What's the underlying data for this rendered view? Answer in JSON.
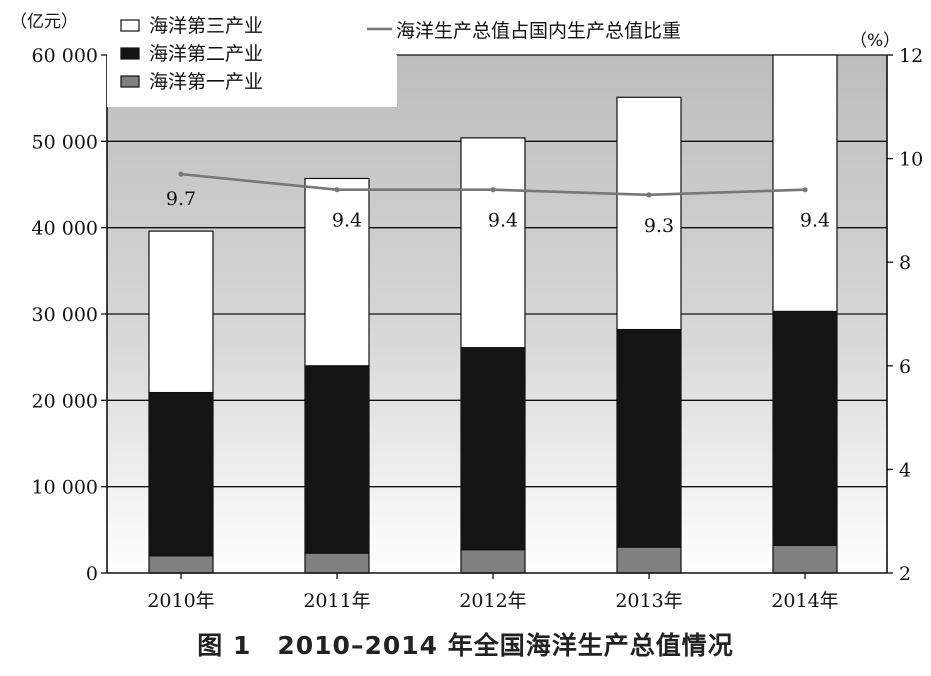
{
  "chart_data": {
    "type": "bar",
    "stacked": true,
    "caption": "图 1　2010–2014 年全国海洋生产总值情况",
    "left_unit": "（亿元）",
    "right_unit": "（%）",
    "categories": [
      "2010年",
      "2011年",
      "2012年",
      "2013年",
      "2014年"
    ],
    "series": [
      {
        "name": "海洋第一产业",
        "color": "#808080",
        "values": [
          2000,
          2300,
          2700,
          3000,
          3200
        ]
      },
      {
        "name": "海洋第二产业",
        "color": "#141414",
        "values": [
          18900,
          21700,
          23400,
          25200,
          27100
        ]
      },
      {
        "name": "海洋第三产业",
        "color": "#ffffff",
        "values": [
          18700,
          21700,
          24300,
          26900,
          29700
        ]
      }
    ],
    "line_series": {
      "name": "海洋生产总值占国内生产总值比重",
      "color": "#777777",
      "values": [
        9.7,
        9.4,
        9.4,
        9.3,
        9.4
      ],
      "labels": [
        "9.7",
        "9.4",
        "9.4",
        "9.3",
        "9.4"
      ]
    },
    "legend_order": [
      "海洋第三产业",
      "海洋第二产业",
      "海洋第一产业"
    ],
    "legend_position": "top-left",
    "y_left": {
      "lim": [
        0,
        60000
      ],
      "ticks": [
        0,
        10000,
        20000,
        30000,
        40000,
        50000,
        60000
      ],
      "tick_labels": [
        "0",
        "10 000",
        "20 000",
        "30 000",
        "40 000",
        "50 000",
        "60 000"
      ]
    },
    "y_right": {
      "lim": [
        2,
        12
      ],
      "ticks": [
        2,
        4,
        6,
        8,
        10,
        12
      ],
      "tick_labels": [
        "2",
        "4",
        "6",
        "8",
        "10",
        "12"
      ]
    },
    "grid": true
  }
}
